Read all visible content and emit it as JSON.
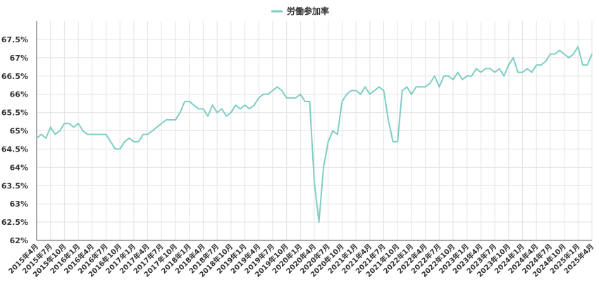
{
  "chart_data": {
    "type": "line",
    "title": "",
    "xlabel": "",
    "ylabel": "",
    "ylim": [
      62,
      68
    ],
    "y_tick_values": [
      62,
      62.5,
      63,
      63.5,
      64,
      64.5,
      65,
      65.5,
      66,
      66.5,
      67,
      67.5
    ],
    "y_tick_labels": [
      "62%",
      "62.5%",
      "63%",
      "63.5%",
      "64%",
      "64.5%",
      "65%",
      "65.5%",
      "66%",
      "66.5%",
      "67%",
      "67.5%"
    ],
    "legend_position": "top-center",
    "grid": true,
    "x_tick_labels": [
      "2015年4月",
      "2015年7月",
      "2015年10月",
      "2016年1月",
      "2016年4月",
      "2016年7月",
      "2016年10月",
      "2017年1月",
      "2017年4月",
      "2017年7月",
      "2017年10月",
      "2018年1月",
      "2018年4月",
      "2018年7月",
      "2018年10月",
      "2019年1月",
      "2019年4月",
      "2019年7月",
      "2019年10月",
      "2020年1月",
      "2020年4月",
      "2020年7月",
      "2020年10月",
      "2021年1月",
      "2021年4月",
      "2021年7月",
      "2021年10月",
      "2022年1月",
      "2022年4月",
      "2022年7月",
      "2022年10月",
      "2023年1月",
      "2023年4月",
      "2023年7月",
      "2023年10月",
      "2024年1月",
      "2024年4月",
      "2024年7月",
      "2024年10月",
      "2025年1月",
      "2025年4月"
    ],
    "series": [
      {
        "name": "労働参加率",
        "color": "#7ecdc4",
        "values": [
          64.8,
          64.9,
          64.8,
          65.1,
          64.9,
          65.0,
          65.2,
          65.2,
          65.1,
          65.2,
          65.0,
          64.9,
          64.9,
          64.9,
          64.9,
          64.9,
          64.7,
          64.5,
          64.5,
          64.7,
          64.8,
          64.7,
          64.7,
          64.9,
          64.9,
          65.0,
          65.1,
          65.2,
          65.3,
          65.3,
          65.3,
          65.5,
          65.8,
          65.8,
          65.7,
          65.6,
          65.6,
          65.4,
          65.7,
          65.5,
          65.6,
          65.4,
          65.5,
          65.7,
          65.6,
          65.7,
          65.6,
          65.7,
          65.9,
          66.0,
          66.0,
          66.1,
          66.2,
          66.1,
          65.9,
          65.9,
          65.9,
          66.0,
          65.8,
          65.8,
          63.6,
          62.5,
          64.0,
          64.7,
          65.0,
          64.9,
          65.8,
          66.0,
          66.1,
          66.1,
          66.0,
          66.2,
          66.0,
          66.1,
          66.2,
          66.1,
          65.3,
          64.7,
          64.7,
          66.1,
          66.2,
          66.0,
          66.2,
          66.2,
          66.2,
          66.3,
          66.5,
          66.2,
          66.5,
          66.5,
          66.4,
          66.6,
          66.4,
          66.5,
          66.5,
          66.7,
          66.6,
          66.7,
          66.7,
          66.6,
          66.7,
          66.5,
          66.8,
          67.0,
          66.6,
          66.6,
          66.7,
          66.6,
          66.8,
          66.8,
          66.9,
          67.1,
          67.1,
          67.2,
          67.1,
          67.0,
          67.1,
          67.3,
          66.8,
          66.8,
          67.1
        ]
      }
    ]
  }
}
